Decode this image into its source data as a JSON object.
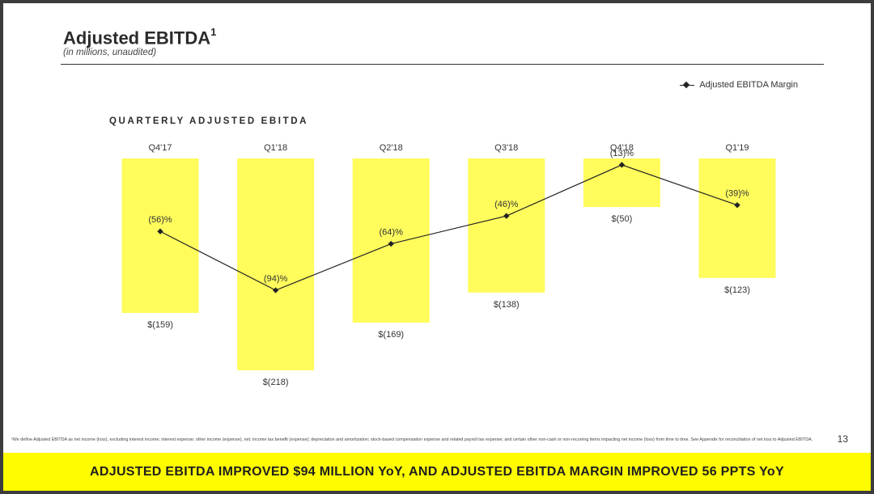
{
  "header": {
    "title": "Adjusted EBITDA",
    "title_superscript": "1",
    "subtitle": "(in millions, unaudited)"
  },
  "legend": {
    "label": "Adjusted EBITDA Margin"
  },
  "chart_title": "QUARTERLY ADJUSTED EBITDA",
  "chart_data": {
    "type": "bar",
    "title": "QUARTERLY ADJUSTED EBITDA",
    "categories": [
      "Q4'17",
      "Q1'18",
      "Q2'18",
      "Q3'18",
      "Q4'18",
      "Q1'19"
    ],
    "series": [
      {
        "values": [
          -159,
          -218,
          -169,
          -138,
          -50,
          -123
        ],
        "value_labels": [
          "$(159)",
          "$(218)",
          "$(169)",
          "$(138)",
          "$(50)",
          "$(123)"
        ],
        "color": "#fffc5c"
      },
      {
        "name": "Adjusted EBITDA Margin",
        "type": "line",
        "values": [
          -56,
          -94,
          -64,
          -46,
          -13,
          -39
        ],
        "value_labels": [
          "(56)%",
          "(94)%",
          "(64)%",
          "(46)%",
          "(13)%",
          "(39)%"
        ],
        "color": "#222222"
      }
    ],
    "legend_position": "top-right",
    "grid": false
  },
  "footnote": "¹We define Adjusted EBITDA as net income (loss), excluding interest income; interest expense; other income (expense), net; income tax benefit (expense); depreciation and amortization; stock-based compensation expense and related payroll tax expense; and certain other non-cash or non-recurring items impacting net income (loss) from time to time. See Appendix for reconciliation of net loss to Adjusted EBITDA.",
  "page_number": "13",
  "banner": {
    "text": "ADJUSTED EBITDA IMPROVED $94 MILLION YoY, AND ADJUSTED EBITDA MARGIN IMPROVED 56 PPTS YoY"
  },
  "colors": {
    "bar": "#fffc5c",
    "banner": "#fffc00",
    "line": "#222222"
  }
}
